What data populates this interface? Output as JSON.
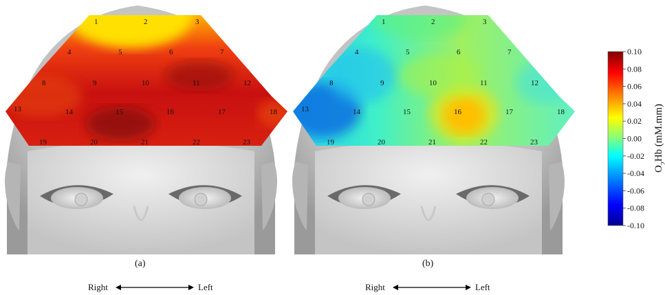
{
  "panels": [
    {
      "caption": "(a)",
      "channels": [
        "1",
        "2",
        "3",
        "4",
        "5",
        "6",
        "7",
        "8",
        "9",
        "10",
        "11",
        "12",
        "13",
        "14",
        "15",
        "16",
        "17",
        "18",
        "19",
        "20",
        "21",
        "22",
        "23"
      ],
      "direction": {
        "right": "Right",
        "left": "Left"
      }
    },
    {
      "caption": "(b)",
      "channels": [
        "1",
        "2",
        "3",
        "4",
        "5",
        "6",
        "7",
        "8",
        "9",
        "10",
        "11",
        "12",
        "13",
        "14",
        "15",
        "16",
        "17",
        "18",
        "19",
        "20",
        "21",
        "22",
        "23"
      ],
      "direction": {
        "right": "Right",
        "left": "Left"
      }
    }
  ],
  "colorbar": {
    "label_main": "O",
    "label_sub": "2",
    "label_rest": "Hb (mM.mm)",
    "ticks": [
      "0.10",
      "0.08",
      "0.06",
      "0.04",
      "0.02",
      "0.00",
      "-0.02",
      "-0.04",
      "-0.06",
      "-0.08",
      "-0.10"
    ],
    "colors": [
      "#00008f",
      "#0000ff",
      "#00a0ff",
      "#00ffff",
      "#80ff80",
      "#ffff00",
      "#ff8000",
      "#ff0000",
      "#800000"
    ]
  }
}
